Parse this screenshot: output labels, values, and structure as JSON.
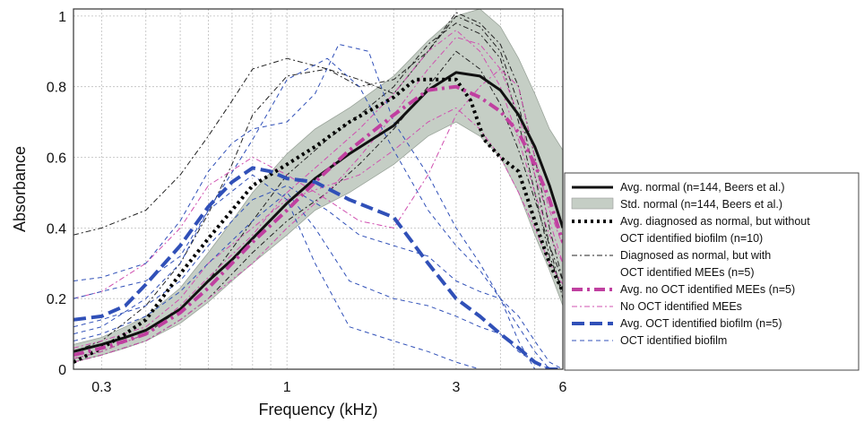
{
  "chart_data": {
    "type": "line",
    "xlabel": "Frequency (kHz)",
    "ylabel": "Absorbance",
    "x_scale": "log",
    "xlim": [
      0.25,
      6
    ],
    "ylim": [
      0,
      1.02
    ],
    "x_ticks": [
      {
        "v": 0.3,
        "label": "0.3"
      },
      {
        "v": 1,
        "label": "1"
      },
      {
        "v": 3,
        "label": "3"
      },
      {
        "v": 6,
        "label": "6"
      }
    ],
    "y_ticks": [
      {
        "v": 0,
        "label": "0"
      },
      {
        "v": 0.2,
        "label": "0.2"
      },
      {
        "v": 0.4,
        "label": "0.4"
      },
      {
        "v": 0.6,
        "label": "0.6"
      },
      {
        "v": 0.8,
        "label": "0.8"
      },
      {
        "v": 1,
        "label": "1"
      }
    ],
    "grid": true,
    "legend_position": "right",
    "std_band": {
      "name": "Std. normal (n=144, Beers et al.)",
      "color": "#c5cec5",
      "x": [
        0.25,
        0.3,
        0.35,
        0.4,
        0.5,
        0.6,
        0.7,
        0.8,
        1.0,
        1.2,
        1.5,
        2.0,
        2.5,
        3.0,
        3.5,
        4.0,
        4.5,
        5.0,
        5.5,
        6.0
      ],
      "upper": [
        0.07,
        0.09,
        0.12,
        0.15,
        0.23,
        0.33,
        0.42,
        0.5,
        0.61,
        0.68,
        0.74,
        0.83,
        0.93,
        1.0,
        1.02,
        0.97,
        0.88,
        0.78,
        0.68,
        0.62
      ],
      "lower": [
        0.02,
        0.04,
        0.06,
        0.08,
        0.13,
        0.19,
        0.25,
        0.3,
        0.38,
        0.45,
        0.5,
        0.58,
        0.66,
        0.7,
        0.66,
        0.6,
        0.5,
        0.38,
        0.28,
        0.18
      ]
    },
    "series": [
      {
        "name": "Avg. normal (n=144, Beers et al.)",
        "color": "#111111",
        "width": 3,
        "dash": "",
        "legend_label": true,
        "x": [
          0.25,
          0.3,
          0.35,
          0.4,
          0.5,
          0.6,
          0.7,
          0.8,
          1.0,
          1.2,
          1.5,
          2.0,
          2.5,
          3.0,
          3.5,
          4.0,
          4.5,
          5.0,
          5.5,
          6.0
        ],
        "y": [
          0.05,
          0.07,
          0.09,
          0.11,
          0.17,
          0.25,
          0.31,
          0.37,
          0.47,
          0.54,
          0.61,
          0.69,
          0.79,
          0.84,
          0.83,
          0.79,
          0.72,
          0.63,
          0.52,
          0.4
        ]
      },
      {
        "name": "Avg. diagnosed as normal, but without OCT identified biofilm (n=10)",
        "color": "#000000",
        "width": 4,
        "dash": "3,4",
        "legend_label": true,
        "x": [
          0.25,
          0.3,
          0.35,
          0.4,
          0.5,
          0.6,
          0.7,
          0.8,
          1.0,
          1.2,
          1.5,
          2.0,
          2.3,
          2.6,
          3.0,
          3.3,
          3.6,
          4.0,
          4.5,
          5.0,
          5.5,
          6.0
        ],
        "y": [
          0.02,
          0.06,
          0.1,
          0.14,
          0.27,
          0.37,
          0.45,
          0.52,
          0.58,
          0.63,
          0.7,
          0.77,
          0.82,
          0.82,
          0.82,
          0.76,
          0.65,
          0.6,
          0.56,
          0.42,
          0.3,
          0.22
        ]
      },
      {
        "name": "Diagnosed as normal, but with OCT identified MEEs (n=5)",
        "color": "#222222",
        "width": 1,
        "dash": "6,3,2,3",
        "legend_label": true,
        "x": [
          0.25,
          0.3,
          0.4,
          0.5,
          0.6,
          0.7,
          0.8,
          1.0,
          1.3,
          1.6,
          2.0,
          2.5,
          3.0,
          3.5,
          4.0,
          4.5,
          5.0,
          5.5,
          6.0
        ],
        "y": [
          0.38,
          0.4,
          0.45,
          0.55,
          0.66,
          0.76,
          0.85,
          0.88,
          0.85,
          0.8,
          0.82,
          0.9,
          1.0,
          0.97,
          0.9,
          0.75,
          0.55,
          0.35,
          0.2
        ]
      },
      {
        "name": "Diagnosed as normal, but with OCT identified MEEs (n=5)",
        "color": "#222222",
        "width": 1,
        "dash": "6,3,2,3",
        "legend_label": false,
        "x": [
          0.25,
          0.3,
          0.4,
          0.5,
          0.6,
          0.7,
          0.8,
          1.0,
          1.3,
          1.6,
          2.0,
          2.5,
          3.0,
          3.5,
          4.0,
          4.5,
          5.0,
          5.5,
          6.0
        ],
        "y": [
          0.05,
          0.08,
          0.18,
          0.3,
          0.44,
          0.58,
          0.72,
          0.83,
          0.85,
          0.82,
          0.78,
          0.9,
          1.01,
          0.98,
          0.92,
          0.8,
          0.6,
          0.4,
          0.25
        ]
      },
      {
        "name": "Diagnosed as normal, but with OCT identified MEEs (n=5)",
        "color": "#222222",
        "width": 1,
        "dash": "6,3,2,3",
        "legend_label": false,
        "x": [
          0.25,
          0.3,
          0.4,
          0.5,
          0.6,
          0.8,
          1.0,
          1.3,
          1.6,
          2.0,
          2.5,
          3.0,
          3.5,
          4.0,
          4.5,
          5.0,
          5.5,
          6.0
        ],
        "y": [
          0.03,
          0.05,
          0.1,
          0.17,
          0.25,
          0.42,
          0.55,
          0.65,
          0.72,
          0.8,
          0.92,
          0.98,
          0.95,
          0.88,
          0.7,
          0.5,
          0.32,
          0.22
        ]
      },
      {
        "name": "Diagnosed as normal, but with OCT identified MEEs (n=5)",
        "color": "#222222",
        "width": 1,
        "dash": "6,3,2,3",
        "legend_label": false,
        "x": [
          0.25,
          0.3,
          0.4,
          0.5,
          0.6,
          0.8,
          1.0,
          1.3,
          1.6,
          2.0,
          2.5,
          3.0,
          3.5,
          4.0,
          4.5,
          5.0,
          5.5,
          6.0
        ],
        "y": [
          0.02,
          0.04,
          0.08,
          0.14,
          0.2,
          0.33,
          0.42,
          0.5,
          0.58,
          0.68,
          0.8,
          0.9,
          0.85,
          0.75,
          0.62,
          0.48,
          0.35,
          0.25
        ]
      },
      {
        "name": "Avg. no OCT identified MEEs (n=5)",
        "color": "#c040a0",
        "width": 4,
        "dash": "12,5,3,5",
        "legend_label": true,
        "x": [
          0.25,
          0.3,
          0.35,
          0.4,
          0.5,
          0.6,
          0.7,
          0.8,
          1.0,
          1.2,
          1.5,
          2.0,
          2.5,
          3.0,
          3.5,
          4.0,
          4.5,
          5.0,
          5.5,
          6.0
        ],
        "y": [
          0.04,
          0.06,
          0.08,
          0.1,
          0.16,
          0.23,
          0.3,
          0.36,
          0.45,
          0.53,
          0.62,
          0.72,
          0.79,
          0.8,
          0.77,
          0.73,
          0.67,
          0.58,
          0.48,
          0.36
        ]
      },
      {
        "name": "No OCT identified MEEs",
        "color": "#d050b0",
        "width": 1,
        "dash": "6,3,2,3",
        "legend_label": true,
        "x": [
          0.25,
          0.3,
          0.4,
          0.5,
          0.6,
          0.8,
          1.0,
          1.3,
          1.6,
          2.0,
          2.5,
          3.0,
          3.5,
          4.0,
          4.5,
          5.0,
          5.5,
          6.0
        ],
        "y": [
          0.03,
          0.05,
          0.1,
          0.18,
          0.26,
          0.38,
          0.5,
          0.6,
          0.68,
          0.78,
          0.9,
          0.96,
          0.9,
          0.8,
          0.65,
          0.5,
          0.38,
          0.3
        ]
      },
      {
        "name": "No OCT identified MEEs",
        "color": "#d050b0",
        "width": 1,
        "dash": "6,3,2,3",
        "legend_label": false,
        "x": [
          0.25,
          0.3,
          0.4,
          0.5,
          0.6,
          0.8,
          1.0,
          1.3,
          1.6,
          2.0,
          2.5,
          3.0,
          3.5,
          4.0,
          4.5,
          5.0,
          5.5,
          6.0
        ],
        "y": [
          0.06,
          0.08,
          0.12,
          0.2,
          0.3,
          0.4,
          0.48,
          0.52,
          0.55,
          0.62,
          0.7,
          0.74,
          0.68,
          0.6,
          0.5,
          0.4,
          0.3,
          0.24
        ]
      },
      {
        "name": "No OCT identified MEEs",
        "color": "#d050b0",
        "width": 1,
        "dash": "6,3,2,3",
        "legend_label": false,
        "x": [
          0.25,
          0.3,
          0.4,
          0.5,
          0.6,
          0.8,
          1.0,
          1.3,
          1.6,
          2.0,
          2.5,
          3.0,
          3.5,
          4.0,
          4.5,
          5.0,
          5.5,
          6.0
        ],
        "y": [
          0.2,
          0.22,
          0.3,
          0.4,
          0.52,
          0.6,
          0.55,
          0.48,
          0.42,
          0.4,
          0.55,
          0.72,
          0.8,
          0.85,
          0.8,
          0.6,
          0.45,
          0.35
        ]
      },
      {
        "name": "No OCT identified MEEs",
        "color": "#d050b0",
        "width": 1,
        "dash": "6,3,2,3",
        "legend_label": false,
        "x": [
          0.25,
          0.3,
          0.4,
          0.5,
          0.6,
          0.8,
          1.0,
          1.3,
          1.6,
          2.0,
          2.5,
          3.0,
          3.5,
          4.0,
          4.5,
          5.0,
          5.5,
          6.0
        ],
        "y": [
          0.02,
          0.04,
          0.08,
          0.14,
          0.2,
          0.3,
          0.4,
          0.5,
          0.6,
          0.72,
          0.85,
          0.94,
          0.92,
          0.85,
          0.72,
          0.55,
          0.42,
          0.3
        ]
      },
      {
        "name": "Avg. OCT identified biofilm (n=5)",
        "color": "#3050b8",
        "width": 4,
        "dash": "14,6",
        "legend_label": true,
        "x": [
          0.25,
          0.3,
          0.35,
          0.4,
          0.5,
          0.6,
          0.7,
          0.8,
          0.9,
          1.0,
          1.2,
          1.5,
          2.0,
          2.5,
          3.0,
          3.5,
          4.0,
          4.5,
          5.0,
          5.5,
          6.0
        ],
        "y": [
          0.14,
          0.15,
          0.18,
          0.24,
          0.35,
          0.46,
          0.53,
          0.57,
          0.56,
          0.54,
          0.53,
          0.48,
          0.43,
          0.3,
          0.2,
          0.15,
          0.1,
          0.06,
          0.02,
          0.0,
          0.0
        ]
      },
      {
        "name": "OCT identified biofilm",
        "color": "#3050b8",
        "width": 1,
        "dash": "5,4",
        "legend_label": true,
        "x": [
          0.25,
          0.3,
          0.4,
          0.5,
          0.6,
          0.7,
          0.8,
          1.0,
          1.2,
          1.4,
          1.7,
          2.0,
          2.5,
          3.0,
          3.5,
          4.0,
          4.5,
          5.0,
          5.5,
          6.0
        ],
        "y": [
          0.25,
          0.26,
          0.3,
          0.42,
          0.56,
          0.64,
          0.68,
          0.7,
          0.78,
          0.92,
          0.9,
          0.7,
          0.55,
          0.4,
          0.3,
          0.2,
          0.08,
          0.0,
          0.0,
          0.0
        ]
      },
      {
        "name": "OCT identified biofilm",
        "color": "#3050b8",
        "width": 1,
        "dash": "5,4",
        "legend_label": false,
        "x": [
          0.25,
          0.3,
          0.4,
          0.5,
          0.6,
          0.8,
          1.0,
          1.2,
          1.5,
          2.0,
          2.5,
          3.0,
          3.5,
          4.0,
          4.5,
          5.0,
          5.5,
          6.0
        ],
        "y": [
          0.2,
          0.22,
          0.25,
          0.32,
          0.45,
          0.55,
          0.48,
          0.3,
          0.12,
          0.08,
          0.05,
          0.02,
          0.0,
          0.0,
          0.0,
          0.0,
          0.0,
          0.0
        ]
      },
      {
        "name": "OCT identified biofilm",
        "color": "#3050b8",
        "width": 1,
        "dash": "5,4",
        "legend_label": false,
        "x": [
          0.25,
          0.3,
          0.4,
          0.5,
          0.6,
          0.8,
          1.0,
          1.3,
          1.6,
          2.0,
          2.5,
          3.0,
          3.5,
          4.0,
          4.5,
          5.0,
          5.5,
          6.0
        ],
        "y": [
          0.1,
          0.12,
          0.2,
          0.3,
          0.45,
          0.65,
          0.82,
          0.88,
          0.8,
          0.62,
          0.45,
          0.35,
          0.28,
          0.2,
          0.12,
          0.05,
          0.0,
          0.0
        ]
      },
      {
        "name": "OCT identified biofilm",
        "color": "#3050b8",
        "width": 1,
        "dash": "5,4",
        "legend_label": false,
        "x": [
          0.25,
          0.3,
          0.4,
          0.5,
          0.6,
          0.8,
          1.0,
          1.3,
          1.6,
          2.0,
          2.5,
          3.0,
          3.5,
          4.0,
          4.5,
          5.0,
          5.5,
          6.0
        ],
        "y": [
          0.12,
          0.14,
          0.18,
          0.25,
          0.35,
          0.48,
          0.52,
          0.45,
          0.38,
          0.35,
          0.32,
          0.25,
          0.22,
          0.2,
          0.15,
          0.08,
          0.02,
          0.0
        ]
      },
      {
        "name": "OCT identified biofilm",
        "color": "#3050b8",
        "width": 1,
        "dash": "5,4",
        "legend_label": false,
        "x": [
          0.25,
          0.3,
          0.4,
          0.5,
          0.6,
          0.8,
          1.0,
          1.2,
          1.5,
          2.0,
          2.5,
          3.0,
          3.5,
          4.0,
          4.5,
          5.0,
          5.5,
          6.0
        ],
        "y": [
          0.08,
          0.1,
          0.15,
          0.22,
          0.3,
          0.42,
          0.5,
          0.4,
          0.25,
          0.2,
          0.18,
          0.15,
          0.12,
          0.1,
          0.05,
          0.02,
          0.0,
          0.0
        ]
      }
    ]
  }
}
